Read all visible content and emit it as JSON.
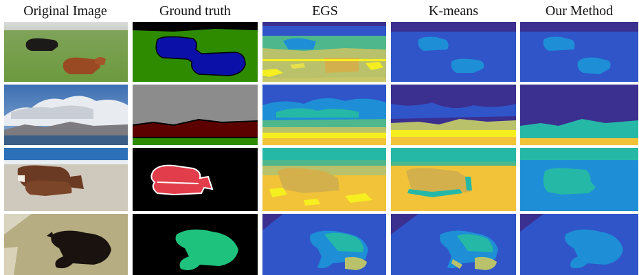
{
  "figure": {
    "columns": [
      {
        "title": "Original Image"
      },
      {
        "title": "Ground truth"
      },
      {
        "title": "EGS"
      },
      {
        "title": "K-means"
      },
      {
        "title": "Our Method"
      }
    ],
    "rows": [
      {
        "subject": "cows-on-grass"
      },
      {
        "subject": "clouds-mountains-sea"
      },
      {
        "subject": "cows-on-beach"
      },
      {
        "subject": "cat-on-carpet"
      }
    ]
  },
  "colors": {
    "viridis_deep": "#3b2f8f",
    "viridis_blue": "#2f55c9",
    "viridis_mid": "#1e8fd6",
    "viridis_teal": "#26b8a6",
    "viridis_olive": "#b9c26a",
    "viridis_yellow": "#f6ef1f",
    "viridis_orange": "#f2c338",
    "gt_green": "#2e8b00",
    "gt_blue": "#0a10a8",
    "gt_gray": "#8c8c8c",
    "gt_maroon": "#5c0000",
    "gt_red": "#e23d4b",
    "gt_mint": "#1fc27d"
  }
}
